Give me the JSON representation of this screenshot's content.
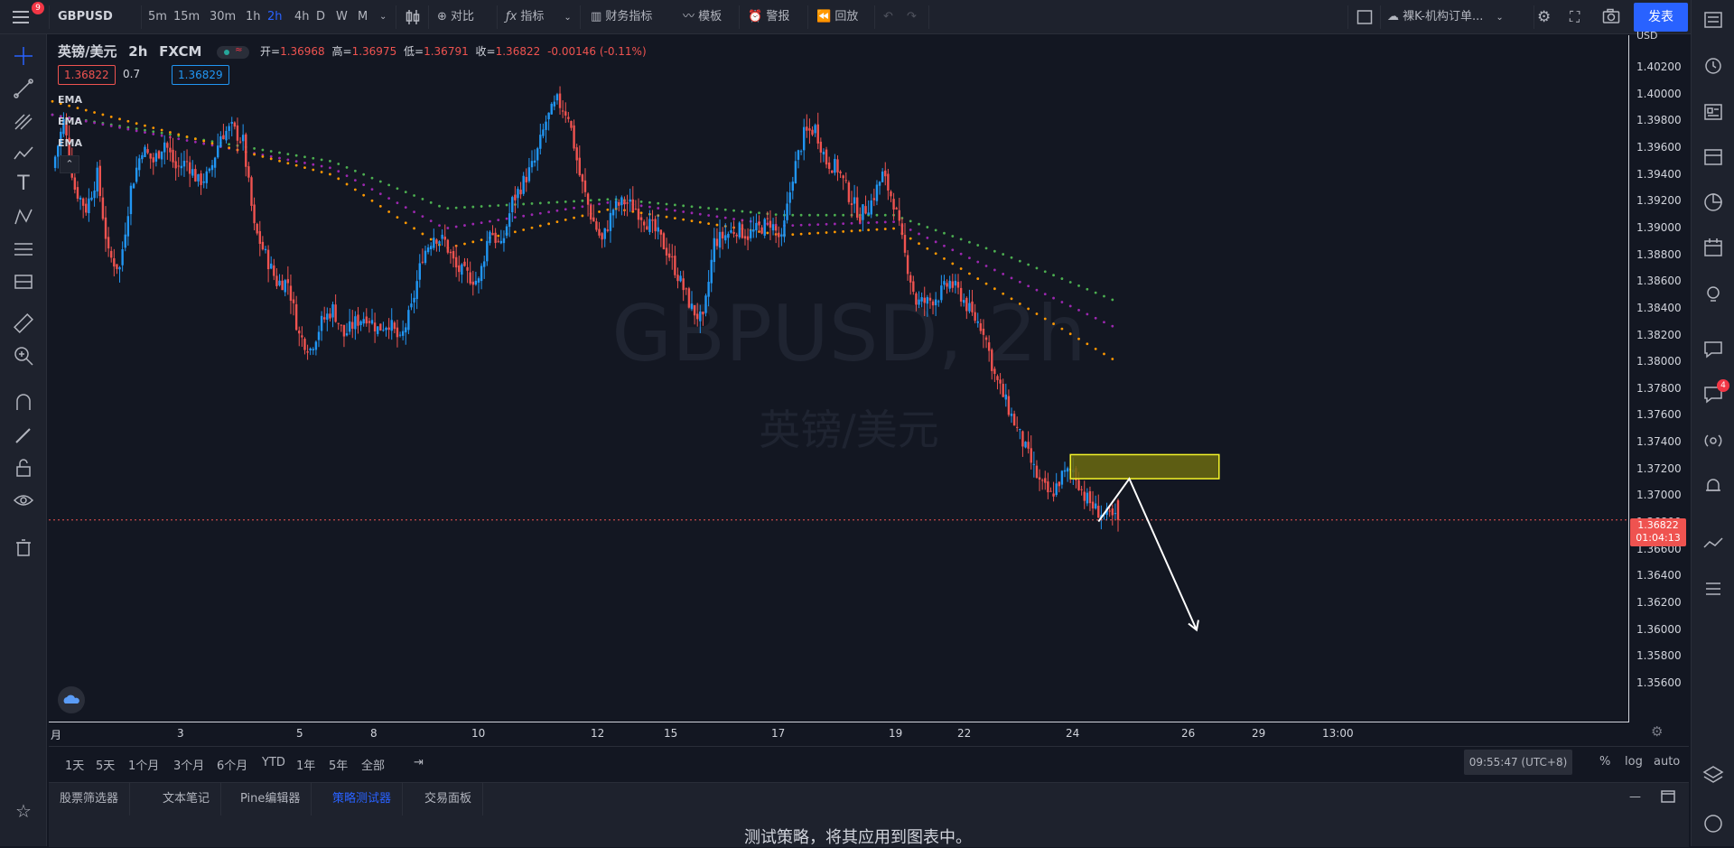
{
  "symbol": "GBPUSD",
  "intervals": [
    "5m",
    "15m",
    "30m",
    "1h",
    "2h",
    "4h",
    "D",
    "W",
    "M"
  ],
  "active_interval": "2h",
  "toolbar": {
    "compare": "对比",
    "indicators": "指标",
    "financials": "财务指标",
    "templates": "模板",
    "alert": "警报",
    "replay": "回放",
    "layout_name": "裸K-机构订单...",
    "publish": "发表",
    "menu_badge": "9"
  },
  "legend": {
    "title": "英镑/美元",
    "interval": "2h",
    "source": "FXCM",
    "open_label": "开=",
    "open": "1.36968",
    "high_label": "高=",
    "high": "1.36975",
    "low_label": "低=",
    "low": "1.36791",
    "close_label": "收=",
    "close": "1.36822",
    "change": "-0.00146 (-0.11%)",
    "bid": "1.36822",
    "spread": "0.7",
    "ask": "1.36829",
    "ema_labels": [
      "EMA",
      "EMA",
      "EMA"
    ]
  },
  "watermark": {
    "symbol_interval": "GBPUSD, 2h",
    "name": "英镑/美元"
  },
  "y_axis": {
    "currency": "USD",
    "ticks": [
      "1.40200",
      "1.40000",
      "1.39800",
      "1.39600",
      "1.39400",
      "1.39200",
      "1.39000",
      "1.38800",
      "1.38600",
      "1.38400",
      "1.38200",
      "1.38000",
      "1.37800",
      "1.37600",
      "1.37400",
      "1.37200",
      "1.37000",
      "1.36800",
      "1.36600",
      "1.36400",
      "1.36200",
      "1.36000",
      "1.35800",
      "1.35600"
    ]
  },
  "current_price": {
    "value": "1.36822",
    "countdown": "01:04:13"
  },
  "x_axis": {
    "ticks": [
      "月",
      "3",
      "5",
      "8",
      "10",
      "12",
      "15",
      "17",
      "19",
      "22",
      "24",
      "26",
      "29",
      "13:00"
    ]
  },
  "range_buttons": [
    "1天",
    "5天",
    "1个月",
    "3个月",
    "6个月",
    "YTD",
    "1年",
    "5年",
    "全部"
  ],
  "clock": "09:55:47 (UTC+8)",
  "scale_buttons": [
    "%",
    "log",
    "auto"
  ],
  "bottom_tabs": [
    "股票筛选器",
    "文本笔记",
    "Pine编辑器",
    "策略测试器",
    "交易面板"
  ],
  "active_bottom_tab": "策略测试器",
  "strategy_message": "测试策略，将其应用到图表中。",
  "right_badge": "4",
  "colors": {
    "up": "#2196f3",
    "down": "#ef5350",
    "background": "#131722",
    "accent": "#2962ff",
    "zone_fill": "#6b6a10",
    "zone_border": "#f5f52a"
  },
  "chart_data": {
    "type": "candlestick",
    "symbol": "GBPUSD",
    "interval": "2h",
    "ylim": [
      1.3545,
      1.4035
    ],
    "x_tick_labels": [
      "月",
      "3",
      "5",
      "8",
      "10",
      "12",
      "15",
      "17",
      "19",
      "22",
      "24",
      "26",
      "29",
      "13:00"
    ],
    "ohlc_last": {
      "open": 1.36968,
      "high": 1.36975,
      "low": 1.36791,
      "close": 1.36822
    },
    "close_path": [
      [
        0,
        1.3945
      ],
      [
        4,
        1.398
      ],
      [
        8,
        1.393
      ],
      [
        12,
        1.3915
      ],
      [
        16,
        1.394
      ],
      [
        20,
        1.388
      ],
      [
        24,
        1.387
      ],
      [
        28,
        1.393
      ],
      [
        32,
        1.396
      ],
      [
        36,
        1.395
      ],
      [
        40,
        1.3965
      ],
      [
        44,
        1.3945
      ],
      [
        48,
        1.395
      ],
      [
        52,
        1.3935
      ],
      [
        56,
        1.394
      ],
      [
        60,
        1.397
      ],
      [
        64,
        1.3975
      ],
      [
        68,
        1.3965
      ],
      [
        72,
        1.39
      ],
      [
        76,
        1.388
      ],
      [
        80,
        1.386
      ],
      [
        84,
        1.386
      ],
      [
        88,
        1.382
      ],
      [
        92,
        1.381
      ],
      [
        96,
        1.383
      ],
      [
        100,
        1.384
      ],
      [
        104,
        1.382
      ],
      [
        108,
        1.383
      ],
      [
        112,
        1.3835
      ],
      [
        116,
        1.3825
      ],
      [
        120,
        1.383
      ],
      [
        124,
        1.3815
      ],
      [
        128,
        1.384
      ],
      [
        132,
        1.388
      ],
      [
        136,
        1.3895
      ],
      [
        140,
        1.389
      ],
      [
        144,
        1.387
      ],
      [
        148,
        1.3865
      ],
      [
        152,
        1.386
      ],
      [
        156,
        1.39
      ],
      [
        160,
        1.3885
      ],
      [
        164,
        1.392
      ],
      [
        168,
        1.3935
      ],
      [
        172,
        1.395
      ],
      [
        176,
        1.398
      ],
      [
        180,
        1.3995
      ],
      [
        184,
        1.3985
      ],
      [
        188,
        1.394
      ],
      [
        192,
        1.391
      ],
      [
        196,
        1.389
      ],
      [
        200,
        1.3915
      ],
      [
        204,
        1.392
      ],
      [
        208,
        1.3915
      ],
      [
        212,
        1.3905
      ],
      [
        216,
        1.3895
      ],
      [
        220,
        1.388
      ],
      [
        224,
        1.386
      ],
      [
        228,
        1.384
      ],
      [
        232,
        1.383
      ],
      [
        236,
        1.389
      ],
      [
        240,
        1.3895
      ],
      [
        244,
        1.39
      ],
      [
        248,
        1.3895
      ],
      [
        252,
        1.39
      ],
      [
        256,
        1.3905
      ],
      [
        260,
        1.389
      ],
      [
        264,
        1.394
      ],
      [
        268,
        1.397
      ],
      [
        272,
        1.3975
      ],
      [
        276,
        1.395
      ],
      [
        280,
        1.3945
      ],
      [
        284,
        1.3925
      ],
      [
        288,
        1.391
      ],
      [
        292,
        1.392
      ],
      [
        296,
        1.394
      ],
      [
        300,
        1.392
      ],
      [
        304,
        1.388
      ],
      [
        308,
        1.3845
      ],
      [
        312,
        1.3845
      ],
      [
        316,
        1.385
      ],
      [
        320,
        1.386
      ],
      [
        324,
        1.385
      ],
      [
        328,
        1.3835
      ],
      [
        332,
        1.3825
      ],
      [
        336,
        1.379
      ],
      [
        340,
        1.377
      ],
      [
        344,
        1.375
      ],
      [
        348,
        1.373
      ],
      [
        352,
        1.371
      ],
      [
        356,
        1.37
      ],
      [
        360,
        1.3715
      ],
      [
        364,
        1.372
      ],
      [
        368,
        1.37
      ],
      [
        372,
        1.369
      ],
      [
        376,
        1.3685
      ],
      [
        380,
        1.36822
      ]
    ],
    "ema_series": [
      {
        "color": "#4caf50",
        "values": [
          [
            0,
            1.3985
          ],
          [
            100,
            1.395
          ],
          [
            140,
            1.3915
          ],
          [
            200,
            1.3922
          ],
          [
            260,
            1.391
          ],
          [
            300,
            1.391
          ],
          [
            340,
            1.388
          ],
          [
            380,
            1.3845
          ]
        ]
      },
      {
        "color": "#9c27b0",
        "values": [
          [
            0,
            1.3985
          ],
          [
            100,
            1.3945
          ],
          [
            140,
            1.39
          ],
          [
            200,
            1.392
          ],
          [
            260,
            1.3902
          ],
          [
            300,
            1.3905
          ],
          [
            340,
            1.3865
          ],
          [
            380,
            1.3825
          ]
        ]
      },
      {
        "color": "#ff9800",
        "values": [
          [
            0,
            1.3995
          ],
          [
            100,
            1.394
          ],
          [
            140,
            1.3885
          ],
          [
            200,
            1.3915
          ],
          [
            260,
            1.3895
          ],
          [
            300,
            1.39
          ],
          [
            340,
            1.385
          ],
          [
            380,
            1.38
          ]
        ]
      }
    ],
    "drawings": {
      "supply_zone": {
        "x0": 363,
        "x1": 416,
        "y_top": 1.3731,
        "y_bottom": 1.3713
      },
      "projection": [
        [
          373,
          1.3681
        ],
        [
          384,
          1.3713
        ],
        [
          408,
          1.36
        ]
      ]
    }
  }
}
